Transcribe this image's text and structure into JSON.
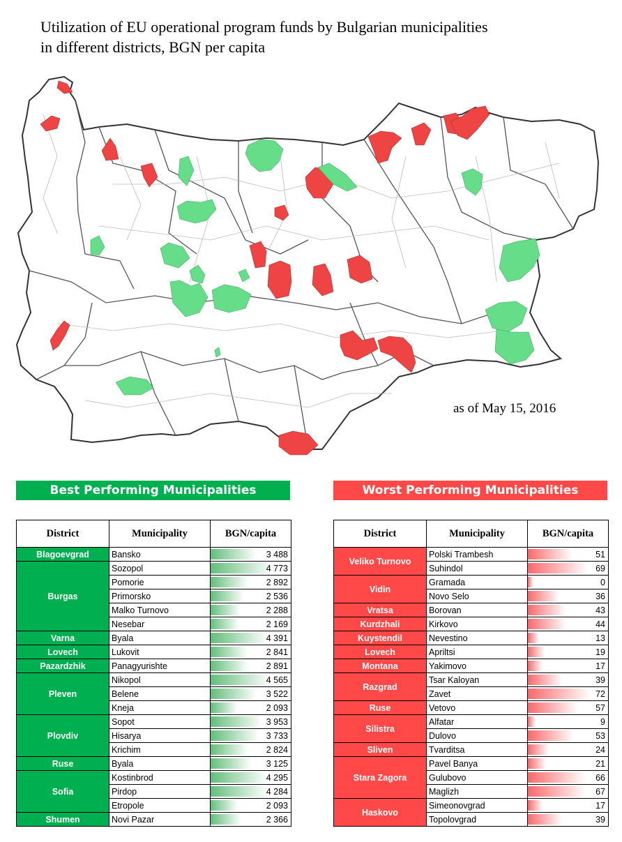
{
  "title_line1": "Utilization of EU operational program funds by Bulgarian municipalities",
  "title_line2": "in different districts, BGN per capita",
  "as_of": "as of May 15, 2016",
  "colors": {
    "best": "#00b050",
    "worst": "#ff4848",
    "map_green": "#66dd88",
    "map_red": "#ee4444"
  },
  "best": {
    "header": "Best Performing Municipalities",
    "columns": [
      "District",
      "Municipality",
      "BGN/capita"
    ],
    "max": 4773,
    "groups": [
      {
        "district": "Blagoevgrad",
        "rows": [
          {
            "municipality": "Bansko",
            "value": 3488,
            "display": "3 488"
          }
        ]
      },
      {
        "district": "Burgas",
        "rows": [
          {
            "municipality": "Sozopol",
            "value": 4773,
            "display": "4 773"
          },
          {
            "municipality": "Pomorie",
            "value": 2892,
            "display": "2 892"
          },
          {
            "municipality": "Primorsko",
            "value": 2536,
            "display": "2 536"
          },
          {
            "municipality": "Malko Turnovo",
            "value": 2288,
            "display": "2 288"
          },
          {
            "municipality": "Nesebar",
            "value": 2169,
            "display": "2 169"
          }
        ]
      },
      {
        "district": "Varna",
        "rows": [
          {
            "municipality": "Byala",
            "value": 4391,
            "display": "4 391"
          }
        ]
      },
      {
        "district": "Lovech",
        "rows": [
          {
            "municipality": "Lukovit",
            "value": 2841,
            "display": "2 841"
          }
        ]
      },
      {
        "district": "Pazardzhik",
        "rows": [
          {
            "municipality": "Panagyurishte",
            "value": 2891,
            "display": "2 891"
          }
        ]
      },
      {
        "district": "Pleven",
        "rows": [
          {
            "municipality": "Nikopol",
            "value": 4565,
            "display": "4 565"
          },
          {
            "municipality": "Belene",
            "value": 3522,
            "display": "3 522"
          },
          {
            "municipality": "Kneja",
            "value": 2093,
            "display": "2 093"
          }
        ]
      },
      {
        "district": "Plovdiv",
        "rows": [
          {
            "municipality": "Sopot",
            "value": 3953,
            "display": "3 953"
          },
          {
            "municipality": "Hisarya",
            "value": 3733,
            "display": "3 733"
          },
          {
            "municipality": "Krichim",
            "value": 2824,
            "display": "2 824"
          }
        ]
      },
      {
        "district": "Ruse",
        "rows": [
          {
            "municipality": "Byala",
            "value": 3125,
            "display": "3 125"
          }
        ]
      },
      {
        "district": "Sofia",
        "rows": [
          {
            "municipality": "Kostinbrod",
            "value": 4295,
            "display": "4 295"
          },
          {
            "municipality": "Pirdop",
            "value": 4284,
            "display": "4 284"
          },
          {
            "municipality": "Etropole",
            "value": 2093,
            "display": "2 093"
          }
        ]
      },
      {
        "district": "Shumen",
        "rows": [
          {
            "municipality": "Novi Pazar",
            "value": 2366,
            "display": "2 366"
          }
        ]
      }
    ]
  },
  "worst": {
    "header": "Worst Performing Municipalities",
    "columns": [
      "District",
      "Municipality",
      "BGN/capita"
    ],
    "max": 72,
    "groups": [
      {
        "district": "Veliko Turnovo",
        "rows": [
          {
            "municipality": "Polski Trambesh",
            "value": 51,
            "display": "51"
          },
          {
            "municipality": "Suhindol",
            "value": 69,
            "display": "69"
          }
        ]
      },
      {
        "district": "Vidin",
        "rows": [
          {
            "municipality": "Gramada",
            "value": 0,
            "display": "0"
          },
          {
            "municipality": "Novo Selo",
            "value": 36,
            "display": "36"
          }
        ]
      },
      {
        "district": "Vratsa",
        "rows": [
          {
            "municipality": "Borovan",
            "value": 43,
            "display": "43"
          }
        ]
      },
      {
        "district": "Kurdzhali",
        "rows": [
          {
            "municipality": "Kirkovo",
            "value": 44,
            "display": "44"
          }
        ]
      },
      {
        "district": "Kuystendil",
        "rows": [
          {
            "municipality": "Nevestino",
            "value": 13,
            "display": "13"
          }
        ]
      },
      {
        "district": "Lovech",
        "rows": [
          {
            "municipality": "Apriltsi",
            "value": 19,
            "display": "19"
          }
        ]
      },
      {
        "district": "Montana",
        "rows": [
          {
            "municipality": "Yakimovo",
            "value": 17,
            "display": "17"
          }
        ]
      },
      {
        "district": "Razgrad",
        "rows": [
          {
            "municipality": "Tsar Kaloyan",
            "value": 39,
            "display": "39"
          },
          {
            "municipality": "Zavet",
            "value": 72,
            "display": "72"
          }
        ]
      },
      {
        "district": "Ruse",
        "rows": [
          {
            "municipality": "Vetovo",
            "value": 57,
            "display": "57"
          }
        ]
      },
      {
        "district": "Silistra",
        "rows": [
          {
            "municipality": "Alfatar",
            "value": 9,
            "display": "9"
          },
          {
            "municipality": "Dulovo",
            "value": 53,
            "display": "53"
          }
        ]
      },
      {
        "district": "Sliven",
        "rows": [
          {
            "municipality": "Tvarditsa",
            "value": 24,
            "display": "24"
          }
        ]
      },
      {
        "district": "Stara Zagora",
        "rows": [
          {
            "municipality": "Pavel Banya",
            "value": 21,
            "display": "21"
          },
          {
            "municipality": "Gulubovo",
            "value": 66,
            "display": "66"
          },
          {
            "municipality": "Maglizh",
            "value": 67,
            "display": "67"
          }
        ]
      },
      {
        "district": "Haskovo",
        "rows": [
          {
            "municipality": "Simeonovgrad",
            "value": 17,
            "display": "17"
          },
          {
            "municipality": "Topolovgrad",
            "value": 39,
            "display": "39"
          }
        ]
      }
    ]
  }
}
